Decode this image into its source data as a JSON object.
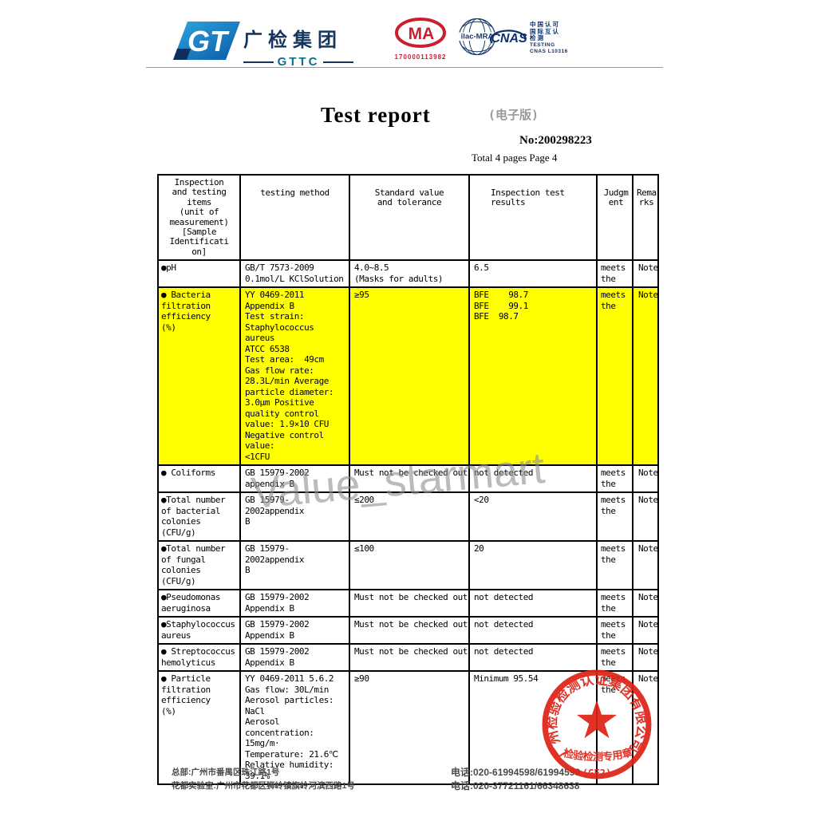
{
  "header": {
    "gttc": {
      "name_cn": "广检集团",
      "abbr": "GTTC"
    },
    "cma": {
      "letters": "MA",
      "cert_no": "170000113982"
    },
    "ilac": {
      "label": "ilac-MRA"
    },
    "cnas": {
      "wordmark": "CNAS",
      "lines": [
        "中国认可",
        "国际互认",
        "检测",
        "TESTING",
        "CNAS L10316"
      ]
    }
  },
  "title": {
    "main": "Test report",
    "edition": "(电子版)",
    "report_no": "No:200298223",
    "pagination": "Total 4 pages Page 4"
  },
  "watermark": "Value_starmart",
  "table": {
    "headers": [
      "Inspection\nand testing\nitems\n(unit of\nmeasurement)\n[Sample\nIdentificati\non]",
      "testing method",
      "Standard value\nand tolerance",
      "Inspection test\nresults",
      "Judgm\nent",
      "Rema\nrks"
    ],
    "rows": [
      {
        "item": "●pH",
        "method": "GB/T 7573-2009\n0.1mol/L KClSolution",
        "standard": "4.0~8.5\n(Masks for adults)",
        "result": "6.5",
        "judgment": "meets the",
        "remark": "Note",
        "highlight": false
      },
      {
        "item": "● Bacteria\nfiltration\nefficiency\n(%)",
        "method": "YY 0469-2011\nAppendix B\nTest strain:\nStaphylococcus aureus\nATCC 6538\nTest area:  49cm\nGas flow rate:\n28.3L/min Average\nparticle diameter:\n3.0μm Positive\nquality control\nvalue: 1.9×10 CFU\nNegative control\nvalue:\n<1CFU",
        "standard": "≥95",
        "result": "BFE    98.7\nBFE    99.1\nBFE  98.7",
        "judgment": "meets the",
        "remark": "Note",
        "highlight": true
      },
      {
        "item": "● Coliforms",
        "method": "GB 15979-2002\nappendix B",
        "standard": "Must not be checked out",
        "result": "not detected",
        "judgment": "meets the",
        "remark": "Note",
        "highlight": false
      },
      {
        "item": "●Total number\nof bacterial\ncolonies\n(CFU/g)",
        "method": "GB 15979-2002appendix\nB",
        "standard": "≤200",
        "result": "<20",
        "judgment": "meets the",
        "remark": "Note",
        "highlight": false
      },
      {
        "item": "●Total number\nof fungal\ncolonies\n(CFU/g)",
        "method": "GB 15979-2002appendix\nB",
        "standard": "≤100",
        "result": "20",
        "judgment": "meets the",
        "remark": "Note",
        "highlight": false
      },
      {
        "item": "●Pseudomonas\naeruginosa",
        "method": "GB 15979-2002\nAppendix B",
        "standard": "Must not be checked out",
        "result": "not detected",
        "judgment": "meets the",
        "remark": "Note",
        "highlight": false
      },
      {
        "item": "●Staphylococcus\naureus",
        "method": "GB 15979-2002\nAppendix B",
        "standard": "Must not be checked out",
        "result": "not detected",
        "judgment": "meets the",
        "remark": "Note",
        "highlight": false
      },
      {
        "item": "● Streptococcus\nhemolyticus",
        "method": "GB 15979-2002\nAppendix B",
        "standard": "Must not be checked out",
        "result": "not detected",
        "judgment": "meets the",
        "remark": "Note",
        "highlight": false
      },
      {
        "item": "● Particle\nfiltration\nefficiency\n(%)",
        "method": "YY 0469-2011 5.6.2\nGas flow: 30L/min\nAerosol particles:\nNaCl\nAerosol\nconcentration:\n15mg/m·\nTemperature: 21.6℃\nRelative humidity:\n39.1%",
        "standard": "≥90",
        "result": "Minimum 95.54",
        "judgment": "meets the",
        "remark": "Note",
        "highlight": false
      }
    ]
  },
  "stamp": {
    "company": "广州检验检测认证集团有限公司",
    "purpose": "检验检测专用章",
    "code": "(GF2)"
  },
  "footer": {
    "address_hq": "总部:广州市番禺区珠江路1号",
    "address_lab": "花都实验室:广州市花都区狮岭镇旗岭河滨西路1号",
    "tel_hq": "电话:020-61994598/61994599",
    "tel_lab": "电话:020-37721161/66348638"
  },
  "colors": {
    "highlight_yellow": "#ffff00",
    "stamp_red": "#dd2418",
    "brand_navy": "#16355c",
    "cma_red": "#c8202f"
  }
}
